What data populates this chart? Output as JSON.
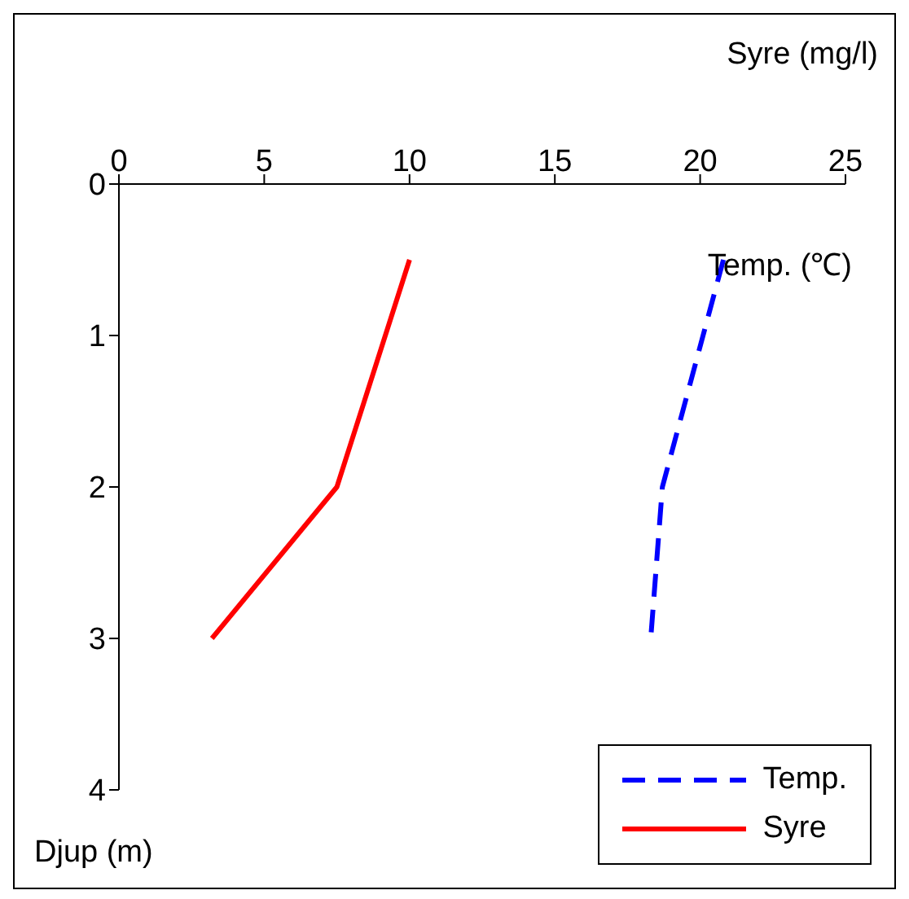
{
  "chart_data": {
    "type": "line",
    "xlabel": "Syre (mg/l)",
    "ylabel": "Djup (m)",
    "annotations": [
      "Temp. (℃)"
    ],
    "xlim": [
      0,
      25
    ],
    "xticks": [
      0,
      5,
      10,
      15,
      20,
      25
    ],
    "ylim": [
      4,
      0
    ],
    "yticks": [
      0,
      1,
      2,
      3,
      4
    ],
    "series": [
      {
        "name": "Temp.",
        "color": "#0000ff",
        "line_style": "dashed",
        "x": [
          20.8,
          18.7,
          18.3
        ],
        "values": [
          0.5,
          2,
          3
        ]
      },
      {
        "name": "Syre",
        "color": "#ff0000",
        "line_style": "solid",
        "x": [
          10,
          7.5,
          3.2
        ],
        "values": [
          0.5,
          2,
          3
        ]
      }
    ],
    "legend": "bottom right"
  }
}
